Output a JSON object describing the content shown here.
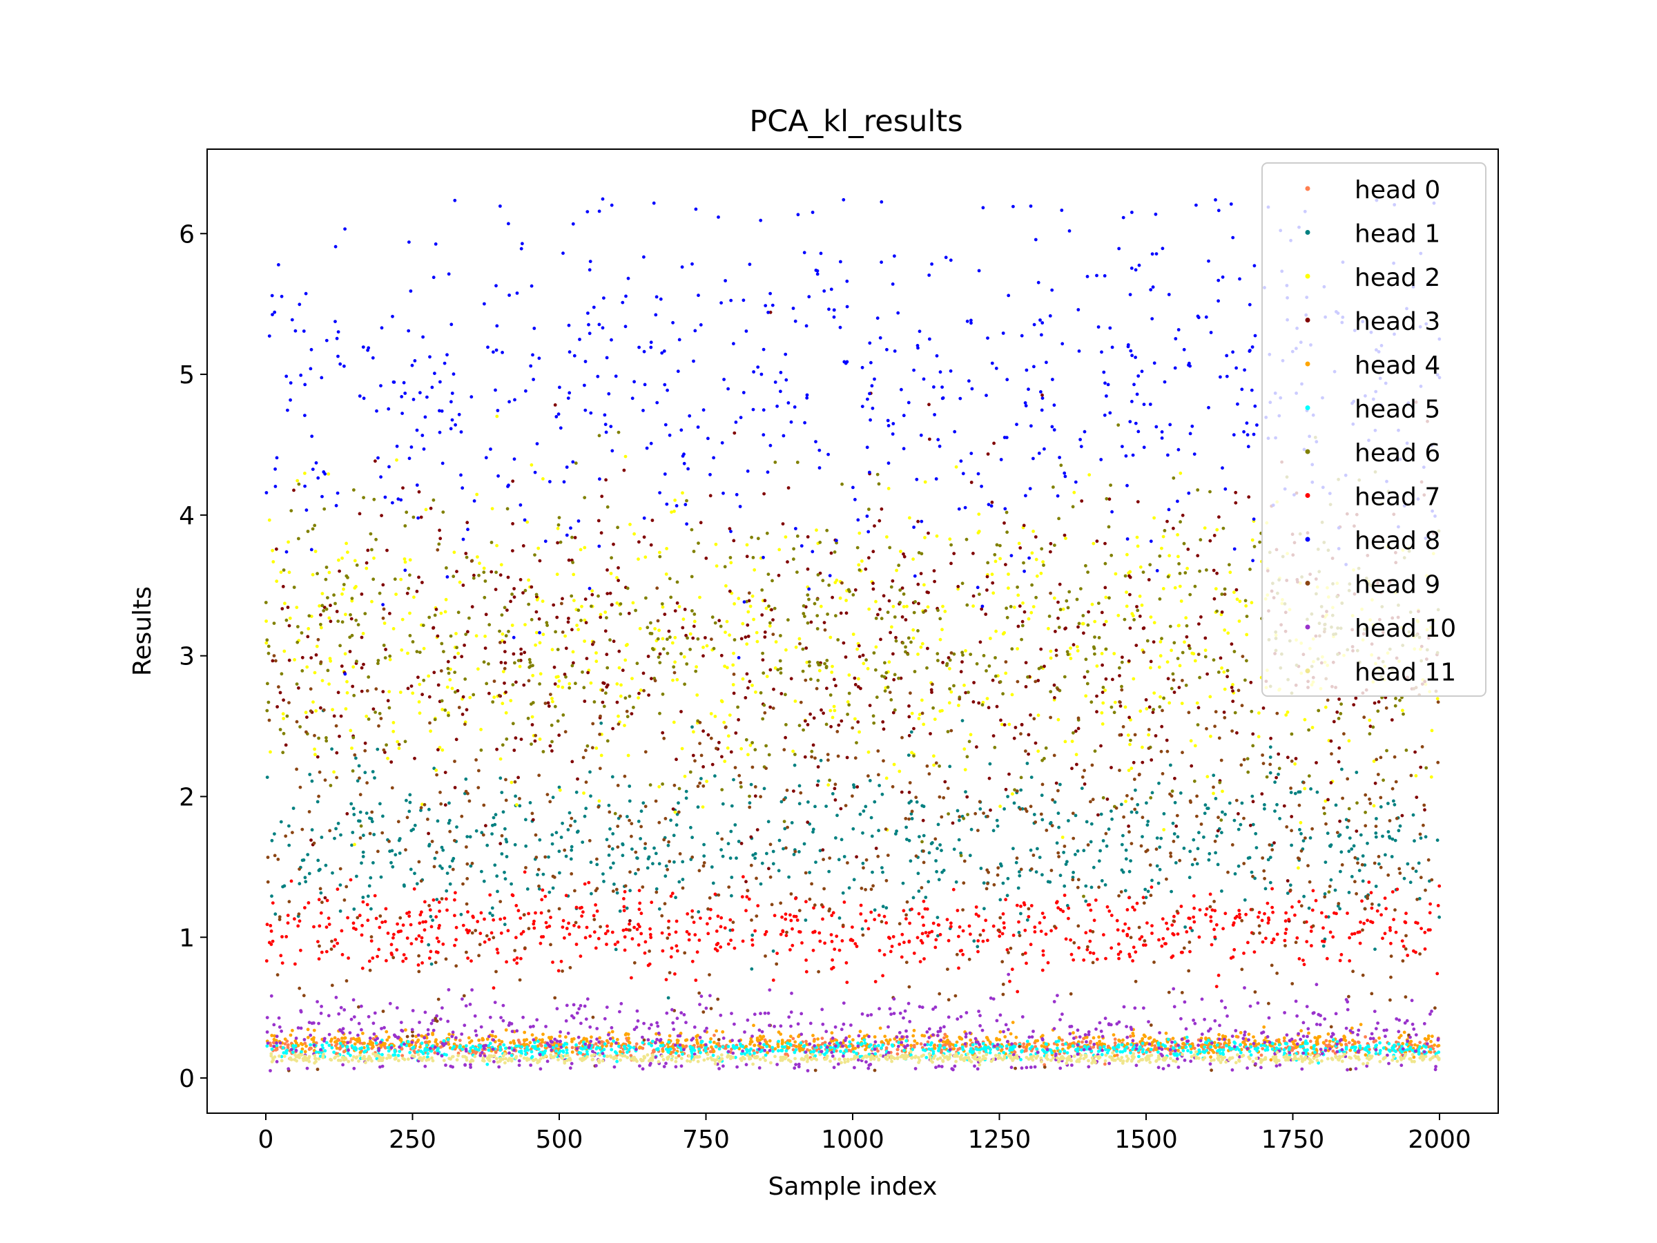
{
  "chart_data": {
    "type": "scatter",
    "title": "PCA_kl_results",
    "xlabel": "Sample index",
    "ylabel": "Results",
    "xlim": [
      -100,
      2100
    ],
    "ylim": [
      -0.25,
      6.6
    ],
    "x_ticks": [
      0,
      250,
      500,
      750,
      1000,
      1250,
      1500,
      1750,
      2000
    ],
    "x_tick_labels": [
      "0",
      "250",
      "500",
      "750",
      "1000",
      "1250",
      "1500",
      "1750",
      "2000"
    ],
    "y_ticks": [
      0,
      1,
      2,
      3,
      4,
      5,
      6
    ],
    "y_tick_labels": [
      "0",
      "1",
      "2",
      "3",
      "4",
      "5",
      "6"
    ],
    "grid": false,
    "legend_position": "top-right",
    "x_range": [
      0,
      2000
    ],
    "series": [
      {
        "name": "head 0",
        "color": "#ff7f50",
        "center": 0.22,
        "spread": 0.03
      },
      {
        "name": "head 1",
        "color": "#008080",
        "center": 1.65,
        "spread": 0.28
      },
      {
        "name": "head 2",
        "color": "#ffff00",
        "center": 3.1,
        "spread": 0.5
      },
      {
        "name": "head 3",
        "color": "#800000",
        "center": 3.0,
        "spread": 0.65
      },
      {
        "name": "head 4",
        "color": "#ffa500",
        "center": 0.25,
        "spread": 0.04
      },
      {
        "name": "head 5",
        "color": "#00ffff",
        "center": 0.2,
        "spread": 0.03
      },
      {
        "name": "head 6",
        "color": "#808000",
        "center": 3.1,
        "spread": 0.55
      },
      {
        "name": "head 7",
        "color": "#ff0000",
        "center": 1.05,
        "spread": 0.14
      },
      {
        "name": "head 8",
        "color": "#0000ff",
        "center": 4.9,
        "spread": 0.65
      },
      {
        "name": "head 9",
        "color": "#8b4513",
        "center": 1.7,
        "spread": 0.75
      },
      {
        "name": "head 10",
        "color": "#9932cc",
        "center": 0.28,
        "spread": 0.15
      },
      {
        "name": "head 11",
        "color": "#f0e68c",
        "center": 0.14,
        "spread": 0.015
      }
    ]
  }
}
